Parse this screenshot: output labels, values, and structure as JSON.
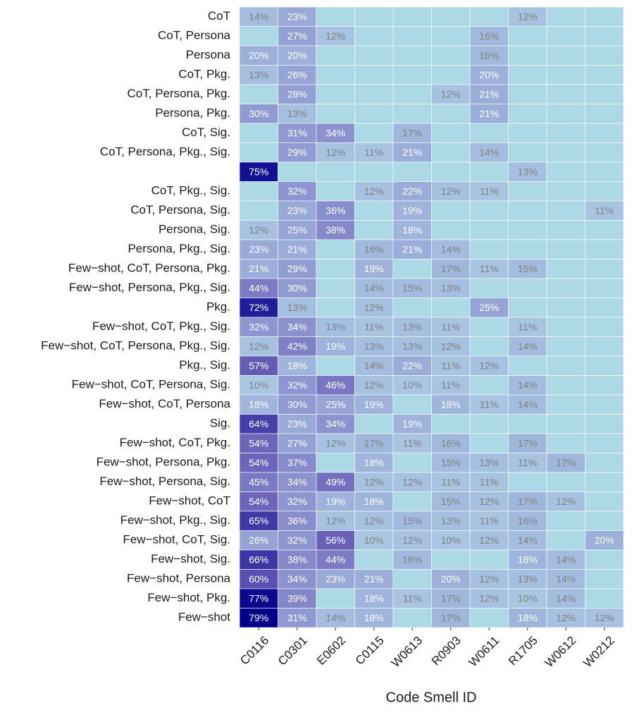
{
  "chart_data": {
    "type": "heatmap",
    "x_label": "Code Smell ID",
    "columns": [
      "C0116",
      "C0301",
      "E0602",
      "C0115",
      "W0613",
      "R0903",
      "W0611",
      "R1705",
      "W0612",
      "W0212"
    ],
    "categories": [
      "CoT",
      "CoT, Persona",
      "Persona",
      "CoT, Pkg.",
      "CoT, Persona, Pkg.",
      "Persona, Pkg.",
      "CoT, Sig.",
      "CoT, Persona, Pkg., Sig.",
      null,
      "CoT, Pkg., Sig.",
      "CoT, Persona, Sig.",
      "Persona, Sig.",
      "Persona, Pkg., Sig.",
      "Few−shot, CoT, Persona, Pkg.",
      "Few−shot, Persona, Pkg., Sig.",
      "Pkg.",
      "Few−shot, CoT, Pkg., Sig.",
      "Few−shot, CoT, Persona, Pkg., Sig.",
      "Pkg., Sig.",
      "Few−shot, CoT, Persona, Sig.",
      "Few−shot, CoT, Persona",
      "Sig.",
      "Few−shot, CoT, Pkg.",
      "Few−shot, Persona, Pkg.",
      "Few−shot, Persona, Sig.",
      "Few−shot, CoT",
      "Few−shot, Pkg., Sig.",
      "Few−shot, CoT, Sig.",
      "Few−shot, Sig.",
      "Few−shot, Persona",
      "Few−shot, Pkg.",
      "Few−shot"
    ],
    "values": [
      [
        14,
        23,
        null,
        null,
        null,
        null,
        null,
        12,
        null,
        null
      ],
      [
        null,
        27,
        12,
        null,
        null,
        null,
        16,
        null,
        null,
        null
      ],
      [
        20,
        20,
        null,
        null,
        null,
        null,
        16,
        null,
        null,
        null
      ],
      [
        13,
        26,
        null,
        null,
        null,
        null,
        20,
        null,
        null,
        null
      ],
      [
        null,
        28,
        null,
        null,
        null,
        12,
        21,
        null,
        null,
        null
      ],
      [
        30,
        13,
        null,
        null,
        null,
        null,
        21,
        null,
        null,
        null
      ],
      [
        null,
        31,
        34,
        null,
        17,
        null,
        null,
        null,
        null,
        null
      ],
      [
        null,
        29,
        12,
        11,
        21,
        null,
        14,
        null,
        null,
        null
      ],
      [
        75,
        null,
        null,
        null,
        null,
        null,
        null,
        13,
        null,
        null
      ],
      [
        null,
        32,
        null,
        12,
        22,
        12,
        11,
        null,
        null,
        null
      ],
      [
        null,
        23,
        36,
        null,
        19,
        null,
        null,
        null,
        null,
        11
      ],
      [
        12,
        25,
        38,
        null,
        18,
        null,
        null,
        null,
        null,
        null
      ],
      [
        23,
        21,
        null,
        16,
        21,
        14,
        null,
        null,
        null,
        null
      ],
      [
        21,
        29,
        null,
        19,
        null,
        17,
        11,
        15,
        null,
        null
      ],
      [
        44,
        30,
        null,
        14,
        15,
        13,
        null,
        null,
        null,
        null
      ],
      [
        72,
        13,
        null,
        12,
        null,
        null,
        25,
        null,
        null,
        null
      ],
      [
        32,
        34,
        13,
        11,
        13,
        11,
        null,
        11,
        null,
        null
      ],
      [
        12,
        42,
        19,
        13,
        13,
        12,
        null,
        14,
        null,
        null
      ],
      [
        57,
        18,
        null,
        14,
        22,
        11,
        12,
        null,
        null,
        null
      ],
      [
        10,
        32,
        46,
        12,
        10,
        11,
        null,
        14,
        null,
        null
      ],
      [
        18,
        30,
        25,
        19,
        null,
        18,
        11,
        14,
        null,
        null
      ],
      [
        64,
        23,
        34,
        null,
        19,
        null,
        null,
        null,
        null,
        null
      ],
      [
        54,
        27,
        12,
        17,
        11,
        16,
        null,
        17,
        null,
        null
      ],
      [
        54,
        37,
        null,
        18,
        null,
        15,
        13,
        11,
        17,
        null
      ],
      [
        45,
        34,
        49,
        12,
        12,
        11,
        11,
        null,
        null,
        null
      ],
      [
        54,
        32,
        19,
        18,
        null,
        15,
        12,
        17,
        12,
        null
      ],
      [
        65,
        36,
        12,
        12,
        15,
        13,
        11,
        16,
        null,
        null
      ],
      [
        26,
        32,
        56,
        10,
        12,
        10,
        12,
        14,
        null,
        20
      ],
      [
        66,
        38,
        44,
        null,
        16,
        null,
        null,
        18,
        14,
        null
      ],
      [
        60,
        34,
        23,
        21,
        null,
        20,
        12,
        13,
        14,
        null
      ],
      [
        77,
        39,
        null,
        18,
        11,
        17,
        12,
        10,
        14,
        null
      ],
      [
        79,
        31,
        14,
        18,
        null,
        17,
        null,
        18,
        12,
        12
      ]
    ],
    "value_labels": [
      [
        "14%",
        "23%",
        null,
        null,
        null,
        null,
        null,
        "12%",
        null,
        null
      ],
      [
        null,
        "27%",
        "12%",
        null,
        null,
        null,
        "16%",
        null,
        null,
        null
      ],
      [
        "20%",
        "20%",
        null,
        null,
        null,
        null,
        "16%",
        null,
        null,
        null
      ],
      [
        "13%",
        "26%",
        null,
        null,
        null,
        null,
        "20%",
        null,
        null,
        null
      ],
      [
        null,
        "28%",
        null,
        null,
        null,
        "12%",
        "21%",
        null,
        null,
        null
      ],
      [
        "30%",
        "13%",
        null,
        null,
        null,
        null,
        "21%",
        null,
        null,
        null
      ],
      [
        null,
        "31%",
        "34%",
        null,
        "17%",
        null,
        null,
        null,
        null,
        null
      ],
      [
        null,
        "29%",
        "12%",
        "11%",
        "21%",
        null,
        "14%",
        null,
        null,
        null
      ],
      [
        "75%",
        null,
        null,
        null,
        null,
        null,
        null,
        "13%",
        null,
        null
      ],
      [
        null,
        "32%",
        null,
        "12%",
        "22%",
        "12%",
        "11%",
        null,
        null,
        null
      ],
      [
        null,
        "23%",
        "36%",
        null,
        "19%",
        null,
        null,
        null,
        null,
        "11%"
      ],
      [
        "12%",
        "25%",
        "38%",
        null,
        "18%",
        null,
        null,
        null,
        null,
        null
      ],
      [
        "23%",
        "21%",
        null,
        "16%",
        "21%",
        "14%",
        null,
        null,
        null,
        null
      ],
      [
        "21%",
        "29%",
        null,
        "19%",
        null,
        "17%",
        "11%",
        "15%",
        null,
        null
      ],
      [
        "44%",
        "30%",
        null,
        "14%",
        "15%",
        "13%",
        null,
        null,
        null,
        null
      ],
      [
        "72%",
        "13%",
        null,
        "12%",
        null,
        null,
        "25%",
        null,
        null,
        null
      ],
      [
        "32%",
        "34%",
        "13%",
        "11%",
        "13%",
        "11%",
        null,
        "11%",
        null,
        null
      ],
      [
        "12%",
        "42%",
        "19%",
        "13%",
        "13%",
        "12%",
        null,
        "14%",
        null,
        null
      ],
      [
        "57%",
        "18%",
        null,
        "14%",
        "22%",
        "11%",
        "12%",
        null,
        null,
        null
      ],
      [
        "10%",
        "32%",
        "46%",
        "12%",
        "10%",
        "11%",
        null,
        "14%",
        null,
        null
      ],
      [
        "18%",
        "30%",
        "25%",
        "19%",
        null,
        "18%",
        "11%",
        "14%",
        null,
        null
      ],
      [
        "64%",
        "23%",
        "34%",
        null,
        "19%",
        null,
        null,
        null,
        null,
        null
      ],
      [
        "54%",
        "27%",
        "12%",
        "17%",
        "11%",
        "16%",
        null,
        "17%",
        null,
        null
      ],
      [
        "54%",
        "37%",
        null,
        "18%",
        null,
        "15%",
        "13%",
        "11%",
        "17%",
        null
      ],
      [
        "45%",
        "34%",
        "49%",
        "12%",
        "12%",
        "11%",
        "11%",
        null,
        null,
        null
      ],
      [
        "54%",
        "32%",
        "19%",
        "18%",
        null,
        "15%",
        "12%",
        "17%",
        "12%",
        null
      ],
      [
        "65%",
        "36%",
        "12%",
        "12%",
        "15%",
        "13%",
        "11%",
        "16%",
        null,
        null
      ],
      [
        "26%",
        "32%",
        "56%",
        "10%",
        "12%",
        "10%",
        "12%",
        "14%",
        null,
        "20%"
      ],
      [
        "66%",
        "38%",
        "44%",
        null,
        "16%",
        null,
        null,
        "18%",
        "14%",
        null
      ],
      [
        "60%",
        "34%",
        "23%",
        "21%",
        null,
        "20%",
        "12%",
        "13%",
        "14%",
        null
      ],
      [
        "77%",
        "39%",
        null,
        "18%",
        "11%",
        "17%",
        "12%",
        "10%",
        "14%",
        null
      ],
      [
        "79%",
        "31%",
        "14%",
        "18%",
        null,
        "17%",
        null,
        "18%",
        "12%",
        "12%"
      ]
    ],
    "empty_color": "#add8e6",
    "color_scale": [
      "#a9c6e2",
      "#8c94cf",
      "#6a60b8",
      "#00008b"
    ]
  }
}
